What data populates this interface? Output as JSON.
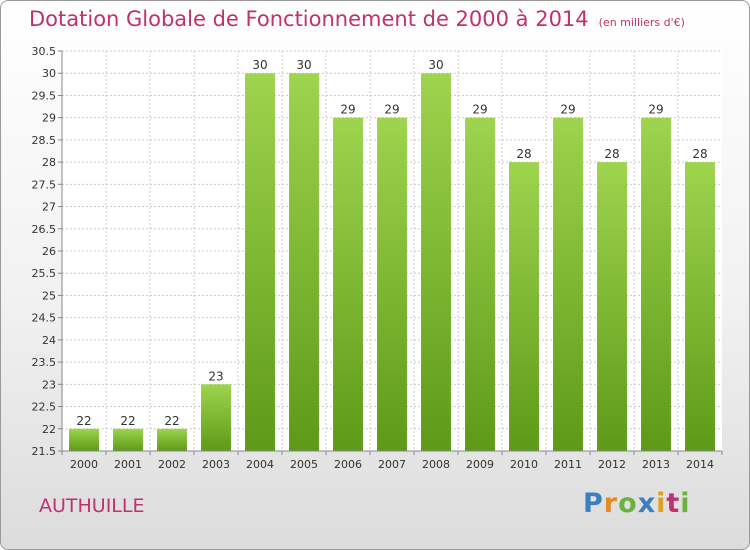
{
  "title": "Dotation Globale de Fonctionnement de 2000 à 2014",
  "subtitle": "(en milliers d'€)",
  "commune": "AUTHUILLE",
  "logo": {
    "p": "P",
    "r": "r",
    "o": "o",
    "x": "x",
    "i": "i",
    "t": "t",
    "i2": "i"
  },
  "colors": {
    "bar_top": "#9ed44e",
    "bar_bottom": "#5e9a17",
    "title": "#c2306e",
    "grid": "#cccccc"
  },
  "chart_data": {
    "type": "bar",
    "categories": [
      "2000",
      "2001",
      "2002",
      "2003",
      "2004",
      "2005",
      "2006",
      "2007",
      "2008",
      "2009",
      "2010",
      "2011",
      "2012",
      "2013",
      "2014"
    ],
    "values": [
      22,
      22,
      22,
      23,
      30,
      30,
      29,
      29,
      30,
      29,
      28,
      29,
      28,
      29,
      28
    ],
    "ylim": [
      21.5,
      30.5
    ],
    "yticks": [
      21.5,
      22,
      22.5,
      23,
      23.5,
      24,
      24.5,
      25,
      25.5,
      26,
      26.5,
      27,
      27.5,
      28,
      28.5,
      29,
      29.5,
      30,
      30.5
    ],
    "grid": true,
    "legend": "none"
  }
}
